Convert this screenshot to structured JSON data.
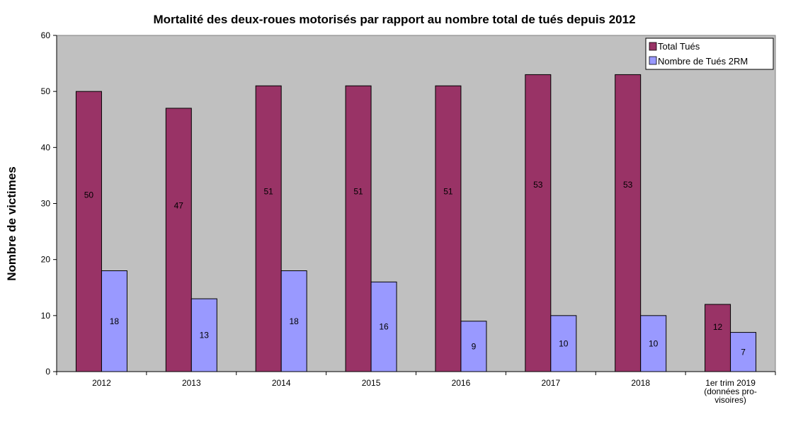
{
  "chart_data": {
    "type": "bar",
    "title": "Mortalité des deux-roues motorisés par rapport au nombre total de tués depuis 2012",
    "xlabel": "",
    "ylabel": "Nombre de victimes",
    "ylim": [
      0,
      60
    ],
    "yticks": [
      0,
      10,
      20,
      30,
      40,
      50,
      60
    ],
    "grid": false,
    "legend_position": "top-right",
    "plot_background": "#c0c0c0",
    "categories": [
      [
        "2012"
      ],
      [
        "2013"
      ],
      [
        "2014"
      ],
      [
        "2015"
      ],
      [
        "2016"
      ],
      [
        "2017"
      ],
      [
        "2018"
      ],
      [
        "1er trim 2019",
        "(données pro-",
        "visoires)"
      ]
    ],
    "series": [
      {
        "name": "Total Tués",
        "color": "#993366",
        "values": [
          50,
          47,
          51,
          51,
          51,
          53,
          53,
          12
        ]
      },
      {
        "name": "Nombre de Tués 2RM",
        "color": "#9999ff",
        "values": [
          18,
          13,
          18,
          16,
          9,
          10,
          10,
          7
        ]
      }
    ]
  }
}
